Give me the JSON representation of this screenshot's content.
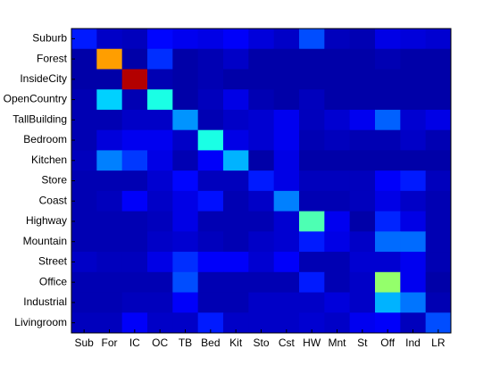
{
  "chart_data": {
    "type": "heatmap",
    "colormap": "jet",
    "x_categories": [
      "Sub",
      "For",
      "IC",
      "OC",
      "TB",
      "Bed",
      "Kit",
      "Sto",
      "Cst",
      "HW",
      "Mnt",
      "St",
      "Off",
      "Ind",
      "LR"
    ],
    "y_categories": [
      "Suburb",
      "Forest",
      "InsideCity",
      "OpenCountry",
      "TallBuilding",
      "Bedroom",
      "Kitchen",
      "Store",
      "Coast",
      "Highway",
      "Mountain",
      "Street",
      "Office",
      "Industrial",
      "Livingroom"
    ],
    "z": [
      [
        0.15,
        0.07,
        0.06,
        0.13,
        0.11,
        0.1,
        0.12,
        0.09,
        0.07,
        0.2,
        0.06,
        0.05,
        0.1,
        0.09,
        0.08
      ],
      [
        0.04,
        0.72,
        0.04,
        0.17,
        0.04,
        0.05,
        0.07,
        0.04,
        0.04,
        0.04,
        0.04,
        0.04,
        0.05,
        0.04,
        0.04
      ],
      [
        0.04,
        0.04,
        0.95,
        0.05,
        0.04,
        0.05,
        0.04,
        0.04,
        0.04,
        0.04,
        0.04,
        0.04,
        0.04,
        0.04,
        0.04
      ],
      [
        0.05,
        0.33,
        0.05,
        0.4,
        0.04,
        0.06,
        0.1,
        0.05,
        0.04,
        0.06,
        0.04,
        0.04,
        0.04,
        0.04,
        0.04
      ],
      [
        0.05,
        0.05,
        0.07,
        0.07,
        0.27,
        0.05,
        0.07,
        0.08,
        0.11,
        0.06,
        0.08,
        0.11,
        0.22,
        0.08,
        0.1
      ],
      [
        0.05,
        0.09,
        0.11,
        0.11,
        0.07,
        0.4,
        0.1,
        0.08,
        0.11,
        0.05,
        0.06,
        0.05,
        0.05,
        0.07,
        0.05
      ],
      [
        0.06,
        0.25,
        0.18,
        0.1,
        0.05,
        0.12,
        0.3,
        0.04,
        0.1,
        0.04,
        0.04,
        0.04,
        0.04,
        0.04,
        0.04
      ],
      [
        0.05,
        0.05,
        0.05,
        0.08,
        0.13,
        0.06,
        0.06,
        0.15,
        0.1,
        0.06,
        0.06,
        0.06,
        0.12,
        0.15,
        0.06
      ],
      [
        0.05,
        0.06,
        0.12,
        0.07,
        0.1,
        0.14,
        0.05,
        0.07,
        0.25,
        0.05,
        0.05,
        0.06,
        0.1,
        0.07,
        0.05
      ],
      [
        0.05,
        0.05,
        0.05,
        0.06,
        0.1,
        0.05,
        0.05,
        0.05,
        0.08,
        0.45,
        0.11,
        0.04,
        0.16,
        0.1,
        0.05
      ],
      [
        0.05,
        0.05,
        0.05,
        0.07,
        0.08,
        0.06,
        0.05,
        0.07,
        0.08,
        0.15,
        0.1,
        0.07,
        0.23,
        0.23,
        0.05
      ],
      [
        0.07,
        0.06,
        0.06,
        0.1,
        0.17,
        0.12,
        0.12,
        0.08,
        0.12,
        0.05,
        0.05,
        0.08,
        0.08,
        0.11,
        0.05
      ],
      [
        0.05,
        0.05,
        0.05,
        0.05,
        0.2,
        0.05,
        0.05,
        0.05,
        0.05,
        0.15,
        0.05,
        0.07,
        0.52,
        0.11,
        0.04
      ],
      [
        0.05,
        0.05,
        0.06,
        0.06,
        0.12,
        0.05,
        0.05,
        0.07,
        0.07,
        0.07,
        0.09,
        0.07,
        0.3,
        0.24,
        0.05
      ],
      [
        0.06,
        0.06,
        0.12,
        0.07,
        0.07,
        0.15,
        0.07,
        0.07,
        0.07,
        0.08,
        0.07,
        0.11,
        0.12,
        0.06,
        0.2
      ]
    ]
  }
}
